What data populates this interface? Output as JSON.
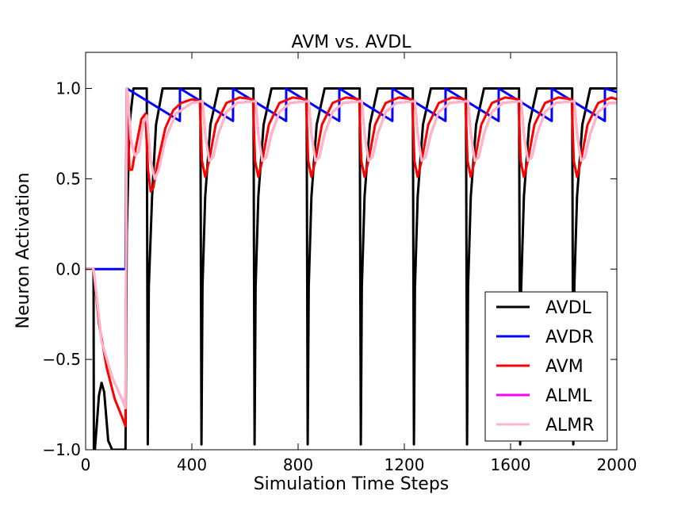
{
  "chart_data": {
    "type": "line",
    "title": "AVM vs. AVDL",
    "xlabel": "Simulation Time Steps",
    "ylabel": "Neuron Activation",
    "xlim": [
      0,
      2000
    ],
    "ylim": [
      -1.0,
      1.2
    ],
    "xticks": [
      "0",
      "400",
      "800",
      "1200",
      "1600",
      "2000"
    ],
    "xtick_values": [
      0,
      400,
      800,
      1200,
      1600,
      2000
    ],
    "yticks": [
      "−1.0",
      "−0.5",
      "0.0",
      "0.5",
      "1.0"
    ],
    "ytick_values": [
      -1.0,
      -0.5,
      0.0,
      0.5,
      1.0
    ],
    "grid": false,
    "legend_position": "lower-right",
    "series": [
      {
        "name": "AVDL",
        "color": "#000000",
        "x": [
          0,
          30,
          31,
          35,
          50,
          60,
          70,
          85,
          100,
          130,
          150,
          155,
          165,
          180,
          200,
          230,
          234,
          238,
          250,
          265,
          290,
          320,
          420,
          432,
          436,
          440,
          450,
          470,
          500,
          520,
          620,
          632,
          636,
          640,
          650,
          670,
          700,
          720,
          820,
          832,
          836,
          840,
          850,
          870,
          900,
          920,
          1020,
          1032,
          1036,
          1040,
          1050,
          1070,
          1100,
          1120,
          1220,
          1232,
          1236,
          1240,
          1250,
          1270,
          1300,
          1320,
          1420,
          1432,
          1436,
          1440,
          1450,
          1470,
          1500,
          1520,
          1620,
          1632,
          1636,
          1640,
          1650,
          1670,
          1700,
          1720,
          1820,
          1832,
          1836,
          1840,
          1850,
          1870,
          1900,
          1920,
          2000
        ],
        "y": [
          0,
          0,
          -1.0,
          -1.0,
          -0.7,
          -0.63,
          -0.68,
          -0.95,
          -1.0,
          -1.0,
          -1.0,
          0.2,
          0.8,
          1.0,
          1.0,
          1.0,
          -0.97,
          -0.1,
          0.4,
          0.8,
          1.0,
          1.0,
          1.0,
          1.0,
          -0.97,
          -0.1,
          0.4,
          0.8,
          1.0,
          1.0,
          1.0,
          1.0,
          -0.97,
          -0.1,
          0.4,
          0.8,
          1.0,
          1.0,
          1.0,
          1.0,
          -0.97,
          -0.1,
          0.4,
          0.8,
          1.0,
          1.0,
          1.0,
          1.0,
          -0.97,
          -0.1,
          0.4,
          0.8,
          1.0,
          1.0,
          1.0,
          1.0,
          -0.97,
          -0.1,
          0.4,
          0.8,
          1.0,
          1.0,
          1.0,
          1.0,
          -0.97,
          -0.1,
          0.4,
          0.8,
          1.0,
          1.0,
          1.0,
          1.0,
          -0.97,
          -0.1,
          0.4,
          0.8,
          1.0,
          1.0,
          1.0,
          1.0,
          -0.97,
          -0.1,
          0.4,
          0.8,
          1.0,
          1.0,
          1.0
        ]
      },
      {
        "name": "AVDR",
        "color": "#0000ff",
        "x": [
          0,
          150,
          155,
          355,
          355.1,
          555,
          555.1,
          755,
          755.1,
          955,
          955.1,
          1155,
          1155.1,
          1355,
          1355.1,
          1555,
          1555.1,
          1755,
          1755.1,
          1955,
          1955.1,
          2000
        ],
        "y": [
          0,
          0,
          1.0,
          0.82,
          1.0,
          0.82,
          1.0,
          0.82,
          1.0,
          0.82,
          1.0,
          0.82,
          1.0,
          0.82,
          1.0,
          0.82,
          1.0,
          0.82,
          1.0,
          0.82,
          1.0,
          0.98
        ]
      },
      {
        "name": "AVM",
        "color": "#ff0000",
        "x": [
          0,
          30,
          50,
          80,
          110,
          140,
          150,
          155,
          165,
          175,
          190,
          210,
          225,
          235,
          245,
          255,
          270,
          300,
          330,
          360,
          400,
          430,
          438,
          450,
          465,
          490,
          530,
          580,
          630,
          638,
          650,
          665,
          690,
          730,
          780,
          830,
          838,
          850,
          865,
          890,
          930,
          980,
          1030,
          1038,
          1050,
          1065,
          1090,
          1130,
          1180,
          1230,
          1238,
          1250,
          1265,
          1290,
          1330,
          1380,
          1430,
          1438,
          1450,
          1465,
          1490,
          1530,
          1580,
          1630,
          1638,
          1650,
          1665,
          1690,
          1730,
          1780,
          1830,
          1838,
          1850,
          1865,
          1890,
          1930,
          1980,
          2000
        ],
        "y": [
          0,
          0,
          -0.3,
          -0.55,
          -0.72,
          -0.83,
          -0.87,
          0.97,
          0.55,
          0.55,
          0.68,
          0.83,
          0.86,
          0.55,
          0.43,
          0.45,
          0.58,
          0.78,
          0.88,
          0.92,
          0.94,
          0.93,
          0.6,
          0.51,
          0.6,
          0.8,
          0.92,
          0.95,
          0.94,
          0.6,
          0.51,
          0.6,
          0.8,
          0.92,
          0.95,
          0.94,
          0.6,
          0.51,
          0.6,
          0.8,
          0.92,
          0.95,
          0.94,
          0.6,
          0.51,
          0.6,
          0.8,
          0.92,
          0.95,
          0.94,
          0.6,
          0.51,
          0.6,
          0.8,
          0.92,
          0.95,
          0.94,
          0.6,
          0.51,
          0.6,
          0.8,
          0.92,
          0.95,
          0.94,
          0.6,
          0.51,
          0.6,
          0.8,
          0.92,
          0.95,
          0.94,
          0.6,
          0.51,
          0.6,
          0.8,
          0.92,
          0.95,
          0.94
        ]
      },
      {
        "name": "ALML",
        "color": "#ff00ff",
        "x": [
          0,
          30,
          60,
          100,
          140,
          150,
          155,
          160,
          170,
          185,
          200,
          215,
          230,
          245,
          260,
          275,
          300,
          340,
          400,
          440,
          450,
          465,
          480,
          500,
          530,
          570,
          640,
          650,
          665,
          680,
          700,
          730,
          770,
          840,
          850,
          865,
          880,
          900,
          930,
          970,
          1040,
          1050,
          1065,
          1080,
          1100,
          1130,
          1170,
          1240,
          1250,
          1265,
          1280,
          1300,
          1330,
          1370,
          1440,
          1450,
          1465,
          1480,
          1500,
          1530,
          1570,
          1640,
          1650,
          1665,
          1680,
          1700,
          1730,
          1770,
          1840,
          1850,
          1865,
          1880,
          1900,
          1930,
          1970,
          2000
        ],
        "y": [
          0,
          0,
          -0.4,
          -0.6,
          -0.73,
          -0.77,
          1.0,
          0.95,
          0.72,
          0.63,
          0.65,
          0.8,
          0.85,
          0.6,
          0.5,
          0.55,
          0.72,
          0.86,
          0.92,
          0.93,
          0.75,
          0.6,
          0.62,
          0.75,
          0.87,
          0.92,
          0.93,
          0.75,
          0.6,
          0.62,
          0.75,
          0.87,
          0.92,
          0.93,
          0.75,
          0.6,
          0.62,
          0.75,
          0.87,
          0.92,
          0.93,
          0.75,
          0.6,
          0.62,
          0.75,
          0.87,
          0.92,
          0.93,
          0.75,
          0.6,
          0.62,
          0.75,
          0.87,
          0.92,
          0.93,
          0.75,
          0.6,
          0.62,
          0.75,
          0.87,
          0.92,
          0.93,
          0.75,
          0.6,
          0.62,
          0.75,
          0.87,
          0.92,
          0.93,
          0.75,
          0.6,
          0.62,
          0.75,
          0.87,
          0.92,
          0.92
        ]
      },
      {
        "name": "ALMR",
        "color": "#ffb6c1",
        "x": [
          0,
          30,
          60,
          100,
          140,
          150,
          155,
          160,
          170,
          185,
          200,
          215,
          230,
          245,
          260,
          275,
          300,
          340,
          400,
          440,
          450,
          465,
          480,
          500,
          530,
          570,
          640,
          650,
          665,
          680,
          700,
          730,
          770,
          840,
          850,
          865,
          880,
          900,
          930,
          970,
          1040,
          1050,
          1065,
          1080,
          1100,
          1130,
          1170,
          1240,
          1250,
          1265,
          1280,
          1300,
          1330,
          1370,
          1440,
          1450,
          1465,
          1480,
          1500,
          1530,
          1570,
          1640,
          1650,
          1665,
          1680,
          1700,
          1730,
          1770,
          1840,
          1850,
          1865,
          1880,
          1900,
          1930,
          1970,
          2000
        ],
        "y": [
          0,
          0,
          -0.4,
          -0.6,
          -0.73,
          -0.77,
          1.0,
          0.95,
          0.72,
          0.63,
          0.65,
          0.8,
          0.85,
          0.6,
          0.5,
          0.55,
          0.72,
          0.86,
          0.92,
          0.93,
          0.75,
          0.6,
          0.62,
          0.75,
          0.87,
          0.92,
          0.93,
          0.75,
          0.6,
          0.62,
          0.75,
          0.87,
          0.92,
          0.93,
          0.75,
          0.6,
          0.62,
          0.75,
          0.87,
          0.92,
          0.93,
          0.75,
          0.6,
          0.62,
          0.75,
          0.87,
          0.92,
          0.93,
          0.75,
          0.6,
          0.62,
          0.75,
          0.87,
          0.92,
          0.93,
          0.75,
          0.6,
          0.62,
          0.75,
          0.87,
          0.92,
          0.93,
          0.75,
          0.6,
          0.62,
          0.75,
          0.87,
          0.92,
          0.93,
          0.75,
          0.6,
          0.62,
          0.75,
          0.87,
          0.92,
          0.92
        ]
      }
    ]
  }
}
